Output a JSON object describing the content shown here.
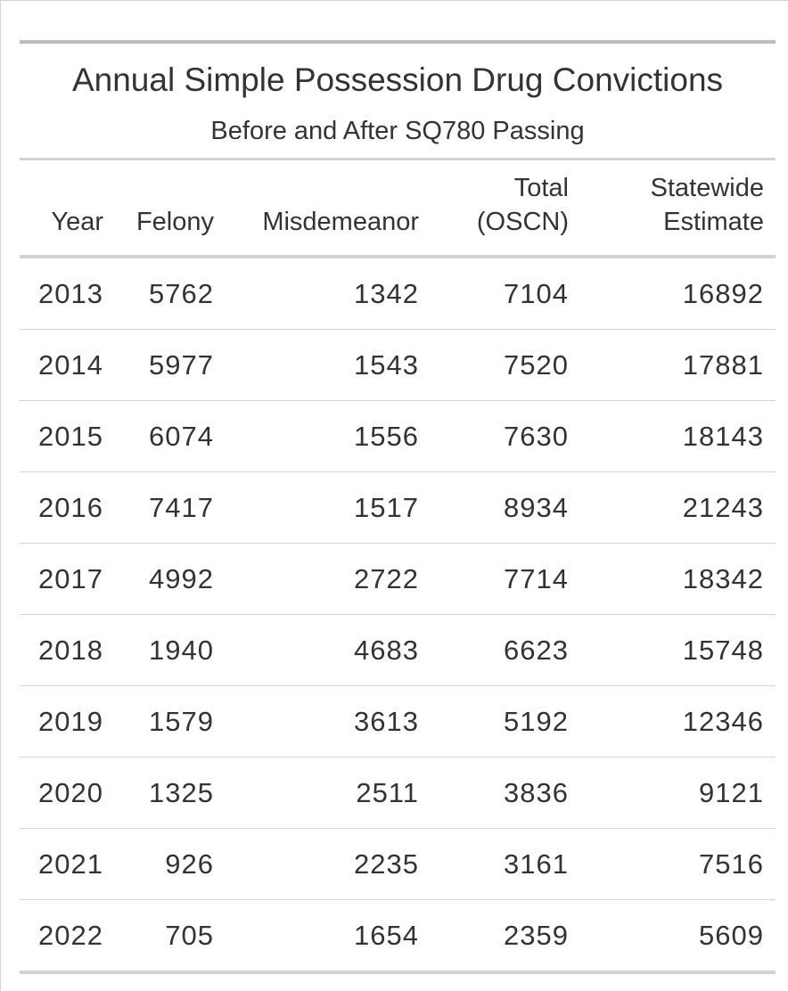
{
  "table": {
    "title": "Annual Simple Possession Drug Convictions",
    "subtitle": "Before and After SQ780 Passing",
    "columns": [
      {
        "line1": "",
        "line2": "Year"
      },
      {
        "line1": "",
        "line2": "Felony"
      },
      {
        "line1": "",
        "line2": "Misdemeanor"
      },
      {
        "line1": "Total",
        "line2": "(OSCN)"
      },
      {
        "line1": "Statewide",
        "line2": "Estimate"
      }
    ],
    "rows": [
      [
        "2013",
        "5762",
        "1342",
        "7104",
        "16892"
      ],
      [
        "2014",
        "5977",
        "1543",
        "7520",
        "17881"
      ],
      [
        "2015",
        "6074",
        "1556",
        "7630",
        "18143"
      ],
      [
        "2016",
        "7417",
        "1517",
        "8934",
        "21243"
      ],
      [
        "2017",
        "4992",
        "2722",
        "7714",
        "18342"
      ],
      [
        "2018",
        "1940",
        "4683",
        "6623",
        "15748"
      ],
      [
        "2019",
        "1579",
        "3613",
        "5192",
        "12346"
      ],
      [
        "2020",
        "1325",
        "2511",
        "3836",
        "9121"
      ],
      [
        "2021",
        "926",
        "2235",
        "3161",
        "7516"
      ],
      [
        "2022",
        "705",
        "1654",
        "2359",
        "5609"
      ]
    ]
  },
  "chart_data": {
    "type": "table",
    "title": "Annual Simple Possession Drug Convictions",
    "subtitle": "Before and After SQ780 Passing",
    "columns": [
      "Year",
      "Felony",
      "Misdemeanor",
      "Total (OSCN)",
      "Statewide Estimate"
    ],
    "rows": [
      [
        2013,
        5762,
        1342,
        7104,
        16892
      ],
      [
        2014,
        5977,
        1543,
        7520,
        17881
      ],
      [
        2015,
        6074,
        1556,
        7630,
        18143
      ],
      [
        2016,
        7417,
        1517,
        8934,
        21243
      ],
      [
        2017,
        4992,
        2722,
        7714,
        18342
      ],
      [
        2018,
        1940,
        4683,
        6623,
        15748
      ],
      [
        2019,
        1579,
        3613,
        5192,
        12346
      ],
      [
        2020,
        1325,
        2511,
        3836,
        9121
      ],
      [
        2021,
        926,
        2235,
        3161,
        7516
      ],
      [
        2022,
        705,
        1654,
        2359,
        5609
      ]
    ]
  }
}
